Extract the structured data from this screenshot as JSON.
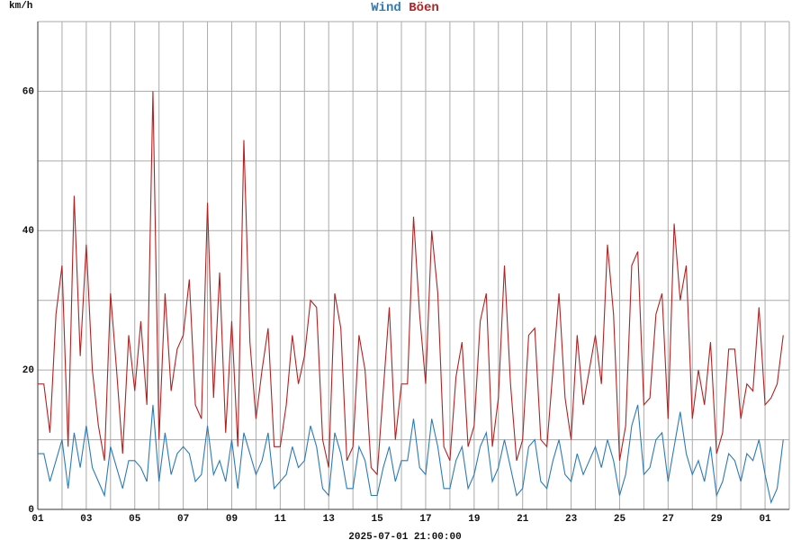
{
  "chart_data": {
    "type": "line",
    "y_label": "km/h",
    "x_label": "2025-07-01 21:00:00",
    "x": [
      0,
      0.25,
      0.5,
      0.75,
      1,
      1.25,
      1.5,
      1.75,
      2,
      2.25,
      2.5,
      2.75,
      3,
      3.25,
      3.5,
      3.75,
      4,
      4.25,
      4.5,
      4.75,
      5,
      5.25,
      5.5,
      5.75,
      6,
      6.25,
      6.5,
      6.75,
      7,
      7.25,
      7.5,
      7.75,
      8,
      8.25,
      8.5,
      8.75,
      9,
      9.25,
      9.5,
      9.75,
      10,
      10.25,
      10.5,
      10.75,
      11,
      11.25,
      11.5,
      11.75,
      12,
      12.25,
      12.5,
      12.75,
      13,
      13.25,
      13.5,
      13.75,
      14,
      14.25,
      14.5,
      14.75,
      15,
      15.25,
      15.5,
      15.75,
      16,
      16.25,
      16.5,
      16.75,
      17,
      17.25,
      17.5,
      17.75,
      18,
      18.25,
      18.5,
      18.75,
      19,
      19.25,
      19.5,
      19.75,
      20,
      20.25,
      20.5,
      20.75,
      21,
      21.25,
      21.5,
      21.75,
      22,
      22.25,
      22.5,
      22.75,
      23,
      23.25,
      23.5,
      23.75,
      24,
      24.25,
      24.5,
      24.75,
      25,
      25.25,
      25.5,
      25.75,
      26,
      26.25,
      26.5,
      26.75,
      27,
      27.25,
      27.5,
      27.75,
      28,
      28.25,
      28.5,
      28.75,
      29,
      29.25,
      29.5,
      29.75,
      30,
      30.25,
      30.5,
      30.75
    ],
    "series": [
      {
        "name": "Wind",
        "color": "#2b7bb9",
        "values": [
          8,
          8,
          4,
          7,
          10,
          3,
          11,
          6,
          12,
          6,
          4,
          2,
          9,
          6,
          3,
          7,
          7,
          6,
          4,
          15,
          4,
          11,
          5,
          8,
          9,
          8,
          4,
          5,
          12,
          5,
          7,
          4,
          10,
          3,
          11,
          8,
          5,
          7,
          11,
          3,
          4,
          5,
          9,
          6,
          7,
          12,
          9,
          3,
          2,
          11,
          8,
          3,
          3,
          9,
          7,
          2,
          2,
          6,
          9,
          4,
          7,
          7,
          13,
          6,
          5,
          13,
          9,
          3,
          3,
          7,
          9,
          3,
          5,
          9,
          11,
          4,
          6,
          10,
          6,
          2,
          3,
          9,
          10,
          4,
          3,
          7,
          10,
          5,
          4,
          8,
          5,
          7,
          9,
          6,
          10,
          7,
          2,
          5,
          12,
          15,
          5,
          6,
          10,
          11,
          4,
          9,
          14,
          8,
          5,
          7,
          4,
          9,
          2,
          4,
          8,
          7,
          4,
          8,
          7,
          10,
          5,
          1,
          3,
          10
        ]
      },
      {
        "name": "Böen",
        "color": "#b22222",
        "values": [
          18,
          18,
          11,
          28,
          35,
          9,
          45,
          22,
          38,
          20,
          12,
          7,
          31,
          20,
          8,
          25,
          17,
          27,
          15,
          60,
          10,
          31,
          17,
          23,
          25,
          33,
          15,
          13,
          44,
          16,
          34,
          11,
          27,
          9,
          53,
          24,
          13,
          20,
          26,
          9,
          9,
          15,
          25,
          18,
          22,
          30,
          29,
          10,
          6,
          31,
          26,
          7,
          9,
          25,
          20,
          6,
          5,
          17,
          29,
          10,
          18,
          18,
          42,
          28,
          18,
          40,
          31,
          9,
          7,
          19,
          24,
          9,
          12,
          27,
          31,
          9,
          16,
          35,
          18,
          7,
          10,
          25,
          26,
          10,
          9,
          20,
          31,
          16,
          10,
          25,
          15,
          20,
          25,
          18,
          38,
          28,
          7,
          12,
          35,
          37,
          15,
          16,
          28,
          31,
          13,
          41,
          30,
          35,
          13,
          20,
          15,
          24,
          8,
          11,
          23,
          23,
          13,
          18,
          17,
          29,
          15,
          16,
          18,
          25
        ]
      }
    ],
    "xlim": [
      0,
      31
    ],
    "xticks": [
      {
        "value": 0,
        "label": "01"
      },
      {
        "value": 2,
        "label": "03"
      },
      {
        "value": 4,
        "label": "05"
      },
      {
        "value": 6,
        "label": "07"
      },
      {
        "value": 8,
        "label": "09"
      },
      {
        "value": 10,
        "label": "11"
      },
      {
        "value": 12,
        "label": "13"
      },
      {
        "value": 14,
        "label": "15"
      },
      {
        "value": 16,
        "label": "17"
      },
      {
        "value": 18,
        "label": "19"
      },
      {
        "value": 20,
        "label": "21"
      },
      {
        "value": 22,
        "label": "23"
      },
      {
        "value": 24,
        "label": "25"
      },
      {
        "value": 26,
        "label": "27"
      },
      {
        "value": 28,
        "label": "29"
      },
      {
        "value": 30,
        "label": "01"
      }
    ],
    "xgrid": [
      0,
      1,
      2,
      3,
      4,
      5,
      6,
      7,
      8,
      9,
      10,
      11,
      12,
      13,
      14,
      15,
      16,
      17,
      18,
      19,
      20,
      21,
      22,
      23,
      24,
      25,
      26,
      27,
      28,
      29,
      30,
      31
    ],
    "ylim": [
      0,
      70
    ],
    "yticks": [
      0,
      20,
      40,
      60
    ],
    "ygrid": [
      0,
      10,
      20,
      30,
      40,
      50,
      60,
      70
    ],
    "grid": true
  }
}
